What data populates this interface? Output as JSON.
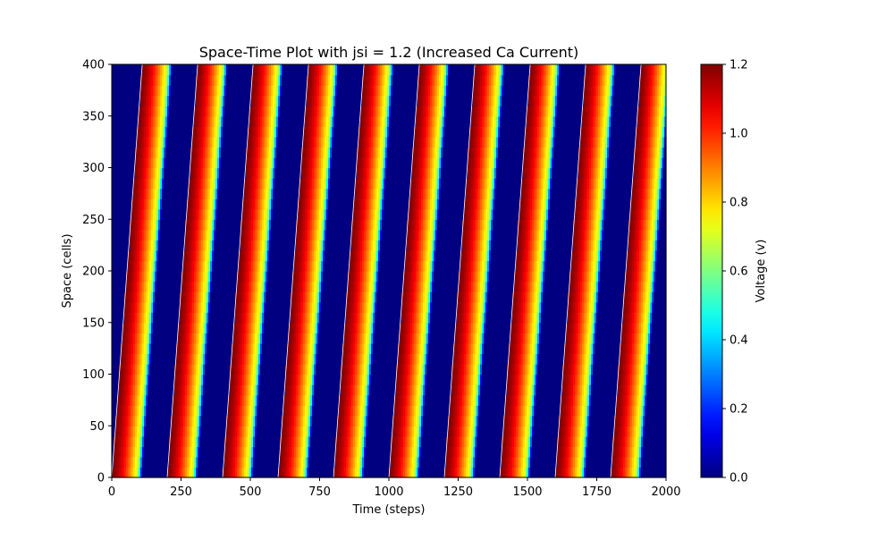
{
  "chart_data": {
    "type": "heatmap",
    "title": "Space-Time Plot with jsi = 1.2 (Increased Ca Current)",
    "xlabel": "Time (steps)",
    "ylabel": "Space (cells)",
    "xlim": [
      0,
      2000
    ],
    "ylim": [
      0,
      400
    ],
    "x_ticks": [
      0,
      250,
      500,
      750,
      1000,
      1250,
      1500,
      1750,
      2000
    ],
    "y_ticks": [
      0,
      50,
      100,
      150,
      200,
      250,
      300,
      350,
      400
    ],
    "colormap": "jet",
    "colorbar": {
      "label": "Voltage (v)",
      "range": [
        0,
        1.2
      ],
      "ticks": [
        0.0,
        0.2,
        0.4,
        0.6,
        0.8,
        1.0,
        1.2
      ],
      "tick_labels": [
        "0.0",
        "0.2",
        "0.4",
        "0.6",
        "0.8",
        "1.0",
        "1.2"
      ]
    },
    "wave": {
      "pacing_period_steps": 200,
      "first_stimulus_step": 0,
      "stimulus_site_cells": 0,
      "propagation_delay_steps_over_400_cells": 110,
      "peak_voltage": 1.2,
      "action_potential_duration_steps": 110
    },
    "grid": false
  }
}
